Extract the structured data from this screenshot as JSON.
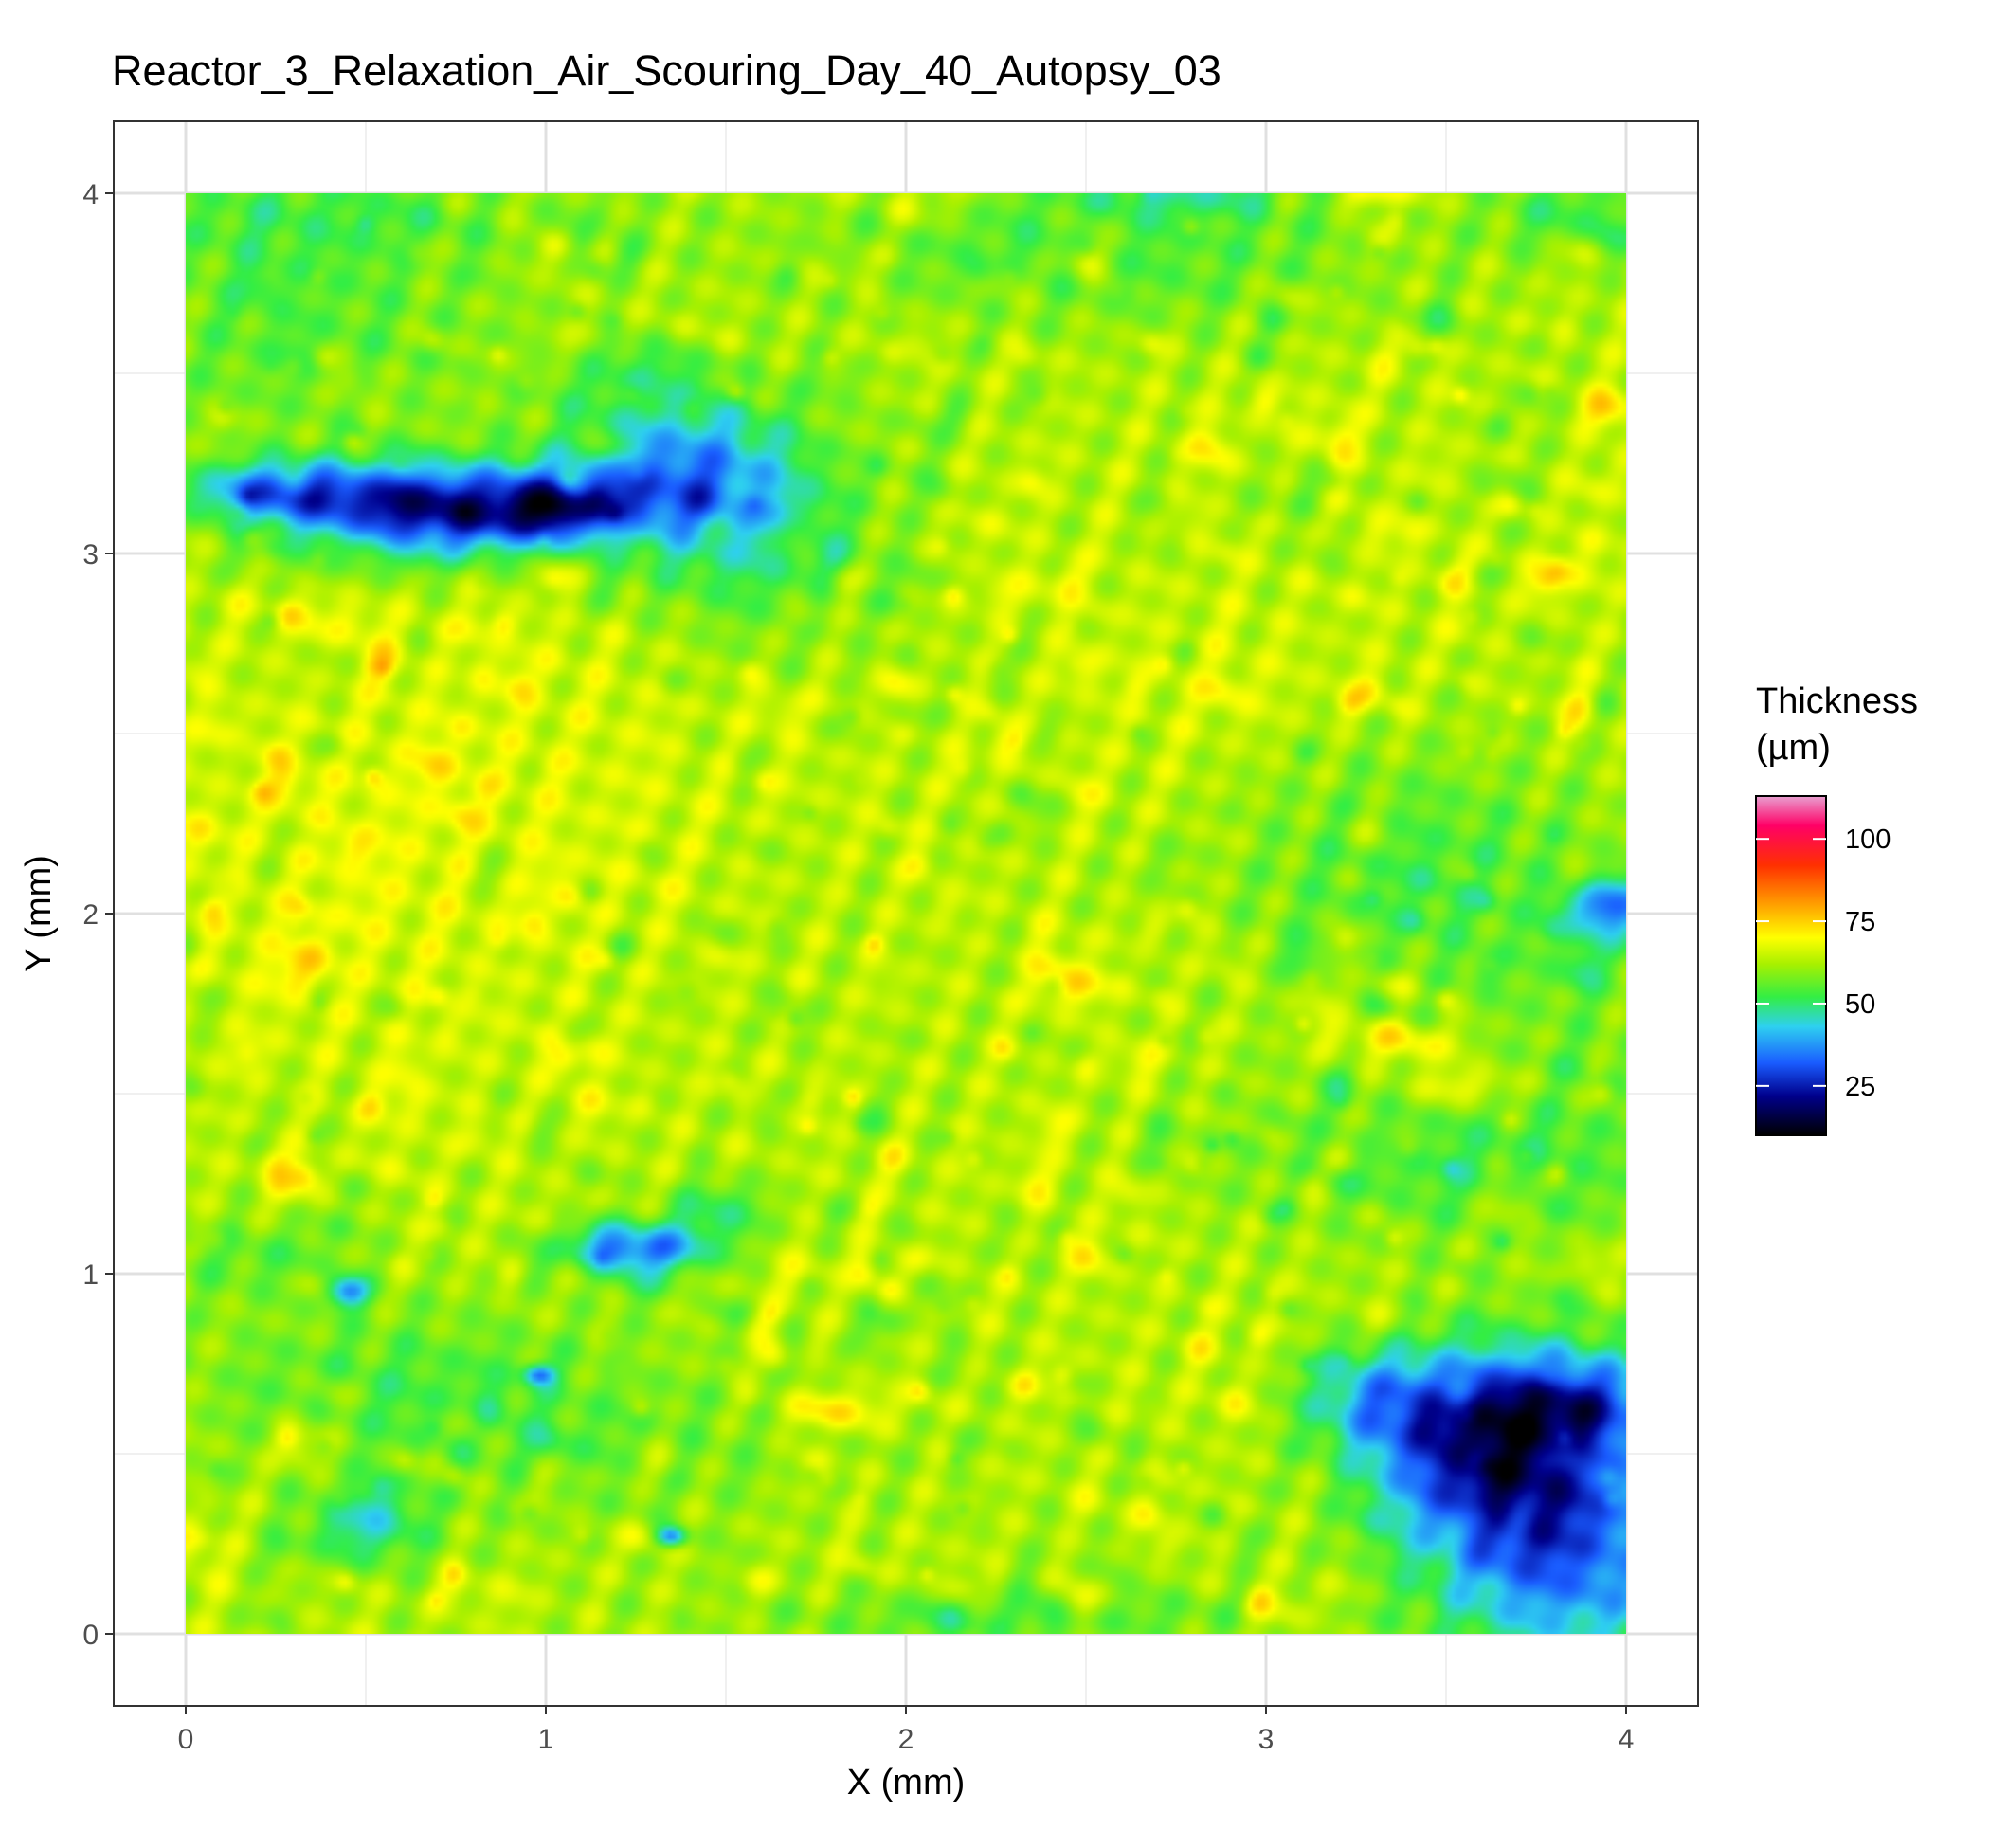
{
  "chart_data": {
    "type": "heatmap",
    "title": "Reactor_3_Relaxation_Air_Scouring_Day_40_Autopsy_03",
    "xlabel": "X (mm)",
    "ylabel": "Y (mm)",
    "xlim": [
      -0.2,
      4.2
    ],
    "ylim": [
      -0.2,
      4.2
    ],
    "x_ticks": [
      0,
      1,
      2,
      3,
      4
    ],
    "y_ticks": [
      0,
      1,
      2,
      3,
      4
    ],
    "x_tick_labels": [
      "0",
      "1",
      "2",
      "3",
      "4"
    ],
    "y_tick_labels": [
      "0",
      "1",
      "2",
      "3",
      "4"
    ],
    "grid": true,
    "legend": {
      "title_line1": "Thickness",
      "title_line2": "(µm)",
      "placement": "right",
      "range": [
        10,
        113
      ],
      "ticks": [
        25,
        50,
        75,
        100
      ],
      "tick_labels": [
        "25",
        "50",
        "75",
        "100"
      ],
      "colorscale": [
        [
          10,
          "#000000"
        ],
        [
          22,
          "#00008c"
        ],
        [
          32,
          "#1a5cff"
        ],
        [
          43,
          "#2ed0f0"
        ],
        [
          52,
          "#33ee44"
        ],
        [
          62,
          "#a8f000"
        ],
        [
          70,
          "#ffff00"
        ],
        [
          80,
          "#ffa000"
        ],
        [
          92,
          "#ff3000"
        ],
        [
          104,
          "#ff0066"
        ],
        [
          113,
          "#e8a0d0"
        ]
      ]
    },
    "x_range": [
      0,
      4
    ],
    "y_range": [
      0,
      4
    ],
    "background_thickness": 63,
    "blobs": [
      {
        "x": 0.25,
        "y": 3.17,
        "sx": 0.18,
        "sy": 0.06,
        "amp": -26
      },
      {
        "x": 0.65,
        "y": 3.12,
        "sx": 0.24,
        "sy": 0.09,
        "amp": -36
      },
      {
        "x": 1.0,
        "y": 3.13,
        "sx": 0.18,
        "sy": 0.07,
        "amp": -30
      },
      {
        "x": 1.35,
        "y": 3.22,
        "sx": 0.22,
        "sy": 0.15,
        "amp": -24
      },
      {
        "x": 1.6,
        "y": 3.05,
        "sx": 0.22,
        "sy": 0.22,
        "amp": -12
      },
      {
        "x": 1.25,
        "y": 3.5,
        "sx": 0.2,
        "sy": 0.08,
        "amp": -8
      },
      {
        "x": 2.55,
        "y": 3.85,
        "sx": 0.6,
        "sy": 0.15,
        "amp": -9
      },
      {
        "x": 0.3,
        "y": 3.65,
        "sx": 0.4,
        "sy": 0.25,
        "amp": -8
      },
      {
        "x": 0.4,
        "y": 3.95,
        "sx": 0.5,
        "sy": 0.1,
        "amp": -7
      },
      {
        "x": 3.6,
        "y": 0.5,
        "sx": 0.22,
        "sy": 0.2,
        "amp": -33
      },
      {
        "x": 3.85,
        "y": 0.25,
        "sx": 0.25,
        "sy": 0.25,
        "amp": -28
      },
      {
        "x": 3.85,
        "y": 0.65,
        "sx": 0.2,
        "sy": 0.1,
        "amp": -22
      },
      {
        "x": 3.3,
        "y": 0.65,
        "sx": 0.15,
        "sy": 0.1,
        "amp": -18
      },
      {
        "x": 3.55,
        "y": 1.3,
        "sx": 0.45,
        "sy": 0.15,
        "amp": -10
      },
      {
        "x": 3.35,
        "y": 2.15,
        "sx": 0.35,
        "sy": 0.25,
        "amp": -10
      },
      {
        "x": 3.95,
        "y": 2.02,
        "sx": 0.08,
        "sy": 0.06,
        "amp": -24
      },
      {
        "x": 1.25,
        "y": 1.07,
        "sx": 0.15,
        "sy": 0.05,
        "amp": -30
      },
      {
        "x": 1.48,
        "y": 1.18,
        "sx": 0.1,
        "sy": 0.06,
        "amp": -12
      },
      {
        "x": 0.5,
        "y": 0.3,
        "sx": 0.12,
        "sy": 0.08,
        "amp": -16
      },
      {
        "x": 0.45,
        "y": 0.95,
        "sx": 0.04,
        "sy": 0.03,
        "amp": -24
      },
      {
        "x": 0.98,
        "y": 0.72,
        "sx": 0.03,
        "sy": 0.02,
        "amp": -22
      },
      {
        "x": 1.35,
        "y": 0.27,
        "sx": 0.03,
        "sy": 0.02,
        "amp": -26
      },
      {
        "x": 2.8,
        "y": 4.0,
        "sx": 0.25,
        "sy": 0.05,
        "amp": -10
      },
      {
        "x": 3.85,
        "y": 3.95,
        "sx": 0.15,
        "sy": 0.08,
        "amp": -10
      },
      {
        "x": 0.2,
        "y": 1.05,
        "sx": 0.2,
        "sy": 0.08,
        "amp": -8
      },
      {
        "x": 0.5,
        "y": 0.7,
        "sx": 0.4,
        "sy": 0.15,
        "amp": -7
      },
      {
        "x": 1.1,
        "y": 0.55,
        "sx": 0.5,
        "sy": 0.2,
        "amp": -6
      },
      {
        "x": 2.4,
        "y": 0.05,
        "sx": 0.6,
        "sy": 0.06,
        "amp": -8
      },
      {
        "x": 1.0,
        "y": 2.5,
        "sx": 0.5,
        "sy": 0.3,
        "amp": 3
      },
      {
        "x": 0.4,
        "y": 2.0,
        "sx": 0.5,
        "sy": 0.3,
        "amp": 4
      },
      {
        "x": 1.8,
        "y": 0.62,
        "sx": 0.1,
        "sy": 0.04,
        "amp": 12
      },
      {
        "x": 3.4,
        "y": 1.65,
        "sx": 0.1,
        "sy": 0.04,
        "amp": 12
      },
      {
        "x": 3.55,
        "y": 1.52,
        "sx": 0.1,
        "sy": 0.04,
        "amp": 10
      },
      {
        "x": 2.5,
        "y": 3.82,
        "sx": 0.04,
        "sy": 0.04,
        "amp": 14
      },
      {
        "x": 3.3,
        "y": 4.0,
        "sx": 0.08,
        "sy": 0.03,
        "amp": 12
      },
      {
        "x": 2.45,
        "y": 1.8,
        "sx": 0.08,
        "sy": 0.04,
        "amp": 10
      },
      {
        "x": 3.95,
        "y": 3.4,
        "sx": 0.05,
        "sy": 0.04,
        "amp": 12
      },
      {
        "x": 3.35,
        "y": 1.8,
        "sx": 0.05,
        "sy": 0.03,
        "amp": 10
      },
      {
        "x": 3.9,
        "y": 1.8,
        "sx": 0.25,
        "sy": 0.25,
        "amp": -5
      },
      {
        "x": 3.0,
        "y": 2.5,
        "sx": 0.35,
        "sy": 0.3,
        "amp": 3
      }
    ]
  }
}
